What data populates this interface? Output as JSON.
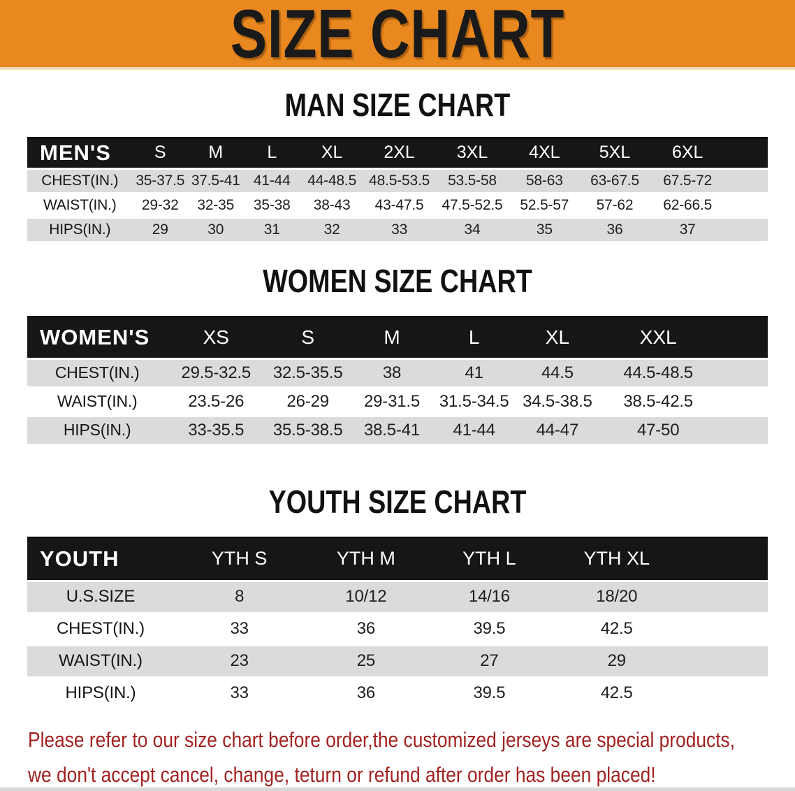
{
  "banner": {
    "title": "SIZE CHART"
  },
  "sections": [
    {
      "id": "men",
      "title": "MAN SIZE CHART",
      "table": {
        "header_label": "MEN'S",
        "columns": [
          "S",
          "M",
          "L",
          "XL",
          "2XL",
          "3XL",
          "4XL",
          "5XL",
          "6XL"
        ],
        "rows": [
          {
            "label": "CHEST(IN.)",
            "values": [
              "35-37.5",
              "37.5-41",
              "41-44",
              "44-48.5",
              "48.5-53.5",
              "53.5-58",
              "58-63",
              "63-67.5",
              "67.5-72"
            ]
          },
          {
            "label": "WAIST(IN.)",
            "values": [
              "29-32",
              "32-35",
              "35-38",
              "38-43",
              "43-47.5",
              "47.5-52.5",
              "52.5-57",
              "57-62",
              "62-66.5"
            ]
          },
          {
            "label": "HIPS(IN.)",
            "values": [
              "29",
              "30",
              "31",
              "32",
              "33",
              "34",
              "35",
              "36",
              "37"
            ]
          }
        ]
      }
    },
    {
      "id": "women",
      "title": "WOMEN SIZE CHART",
      "table": {
        "header_label": "WOMEN'S",
        "columns": [
          "XS",
          "S",
          "M",
          "L",
          "XL",
          "XXL"
        ],
        "rows": [
          {
            "label": "CHEST(IN.)",
            "values": [
              "29.5-32.5",
              "32.5-35.5",
              "38",
              "41",
              "44.5",
              "44.5-48.5"
            ]
          },
          {
            "label": "WAIST(IN.)",
            "values": [
              "23.5-26",
              "26-29",
              "29-31.5",
              "31.5-34.5",
              "34.5-38.5",
              "38.5-42.5"
            ]
          },
          {
            "label": "HIPS(IN.)",
            "values": [
              "33-35.5",
              "35.5-38.5",
              "38.5-41",
              "41-44",
              "44-47",
              "47-50"
            ]
          }
        ]
      }
    },
    {
      "id": "youth",
      "title": "YOUTH SIZE CHART",
      "table": {
        "header_label": "YOUTH",
        "columns": [
          "YTH S",
          "YTH M",
          "YTH L",
          "YTH XL"
        ],
        "rows": [
          {
            "label": "U.S.SIZE",
            "values": [
              "8",
              "10/12",
              "14/16",
              "18/20"
            ]
          },
          {
            "label": "CHEST(IN.)",
            "values": [
              "33",
              "36",
              "39.5",
              "42.5"
            ]
          },
          {
            "label": "WAIST(IN.)",
            "values": [
              "23",
              "25",
              "27",
              "29"
            ]
          },
          {
            "label": "HIPS(IN.)",
            "values": [
              "33",
              "36",
              "39.5",
              "42.5"
            ]
          }
        ]
      }
    }
  ],
  "footer_note": {
    "line1": "Please refer to our size chart before order,the customized jerseys are special products,",
    "line2": "we don't accept cancel, change, teturn or refund after order has been placed!"
  },
  "colors": {
    "banner_bg": "#E8881E",
    "banner_text": "#1A1A1A",
    "table_header_bg": "#161616",
    "table_header_text": "#FFFFFF",
    "row_stripe": "#DBDBDB",
    "row_plain": "#FFFFFF",
    "note_text": "#A32222"
  }
}
